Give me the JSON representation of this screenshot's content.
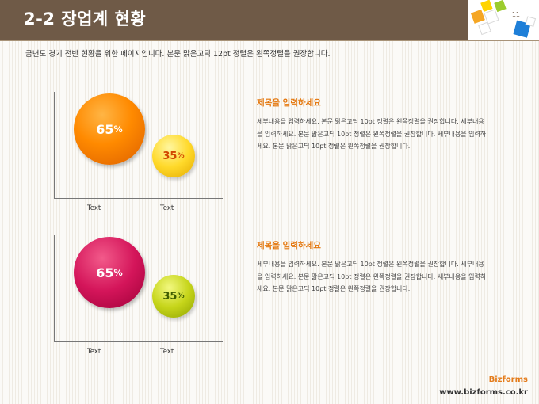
{
  "header": {
    "title": "2-2 장업계 현황",
    "page_number": "11"
  },
  "subtitle": "금년도 경기 전반 현황을 위한 페이지입니다. 본문 맑은고딕 12pt 정렬은 왼쪽정렬을 권장합니다.",
  "charts": [
    {
      "big": {
        "value": "65",
        "unit": "%"
      },
      "small": {
        "value": "35",
        "unit": "%"
      },
      "x_labels": [
        "Text",
        "Text"
      ],
      "colors": {
        "big": "#ff8a00",
        "small": "#ffd92a"
      }
    },
    {
      "big": {
        "value": "65",
        "unit": "%"
      },
      "small": {
        "value": "35",
        "unit": "%"
      },
      "x_labels": [
        "Text",
        "Text"
      ],
      "colors": {
        "big": "#d4155a",
        "small": "#c6d51a"
      }
    }
  ],
  "blocks": [
    {
      "title": "제목을 입력하세요",
      "body": "세부내용을 입력하세요. 본문 맑은고딕 10pt 정렬은 왼쪽정렬을 권장합니다. 세부내용을 입력하세요. 본문 맑은고딕 10pt 정렬은 왼쪽정렬을 권장합니다. 세부내용을 입력하세요. 본문 맑은고딕 10pt 정렬은 왼쪽정렬을 권장합니다."
    },
    {
      "title": "제목을 입력하세요",
      "body": "세부내용을 입력하세요. 본문 맑은고딕 10pt 정렬은 왼쪽정렬을 권장합니다. 세부내용을 입력하세요. 본문 맑은고딕 10pt 정렬은 왼쪽정렬을 권장합니다. 세부내용을 입력하세요. 본문 맑은고딕 10pt 정렬은 왼쪽정렬을 권장합니다."
    }
  ],
  "footer": {
    "brand": "Bizforms",
    "url": "www.bizforms.co.kr"
  }
}
